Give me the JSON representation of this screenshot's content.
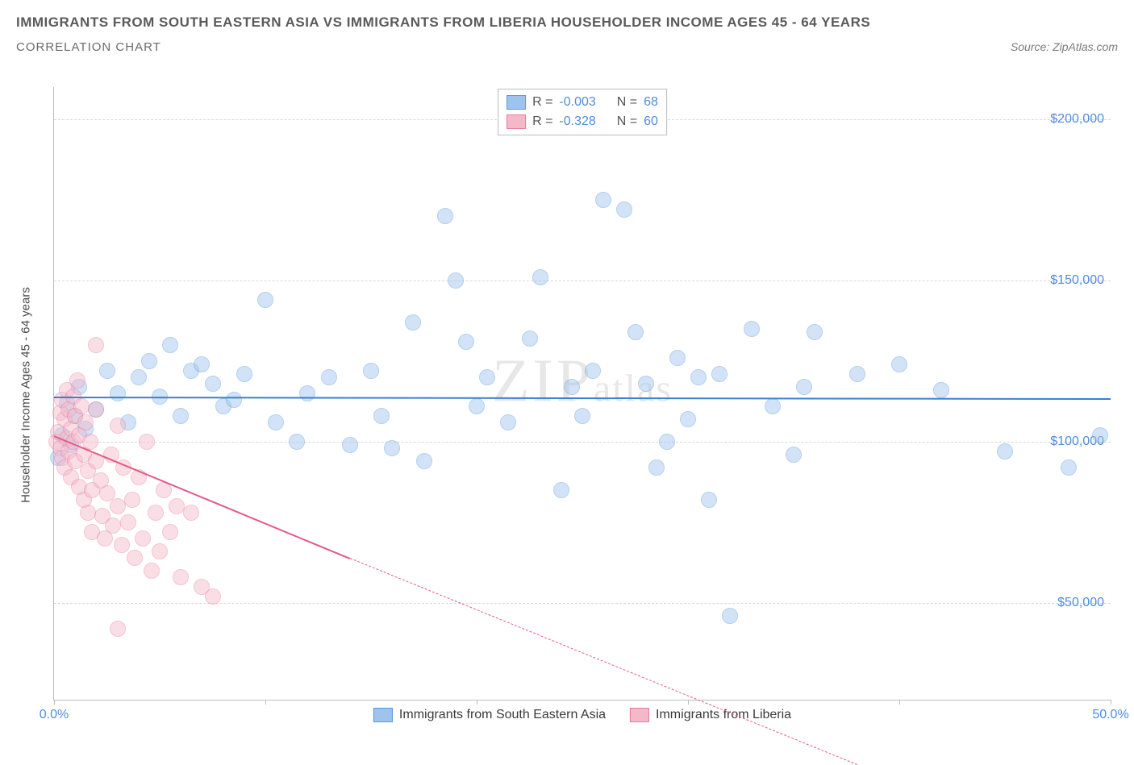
{
  "title": "IMMIGRANTS FROM SOUTH EASTERN ASIA VS IMMIGRANTS FROM LIBERIA HOUSEHOLDER INCOME AGES 45 - 64 YEARS",
  "subtitle": "CORRELATION CHART",
  "source_label": "Source:",
  "source_name": "ZipAtlas.com",
  "watermark": "ZIPatlas",
  "y_axis_title": "Householder Income Ages 45 - 64 years",
  "chart": {
    "type": "scatter",
    "background_color": "#ffffff",
    "grid_color": "#d8d8d8",
    "axis_color": "#bcbcbc",
    "xlim": [
      0,
      50
    ],
    "ylim": [
      20000,
      210000
    ],
    "y_ticks": [
      50000,
      100000,
      150000,
      200000
    ],
    "y_tick_labels": [
      "$50,000",
      "$100,000",
      "$150,000",
      "$200,000"
    ],
    "x_ticks": [
      0,
      10,
      20,
      30,
      40,
      50
    ],
    "x_tick_labels": [
      "0.0%",
      "",
      "",
      "",
      "",
      "50.0%"
    ],
    "tick_label_color": "#4f8bdc",
    "tick_label_fontsize": 16,
    "marker_radius": 9,
    "marker_opacity": 0.45,
    "trend_line_width": 2.5
  },
  "series": [
    {
      "id": "sea",
      "label": "Immigrants from South Eastern Asia",
      "fill_color": "#9dc3ee",
      "stroke_color": "#5a98db",
      "line_color": "#3c7fd0",
      "R": "-0.003",
      "N": "68",
      "trend": {
        "x1": 0,
        "y1": 114000,
        "x2": 50,
        "y2": 113500,
        "dash": false
      },
      "points": [
        [
          0.2,
          95000
        ],
        [
          0.4,
          102000
        ],
        [
          0.6,
          112000
        ],
        [
          0.8,
          99000
        ],
        [
          1.0,
          108000
        ],
        [
          1.2,
          117000
        ],
        [
          1.5,
          104000
        ],
        [
          2.0,
          110000
        ],
        [
          2.5,
          122000
        ],
        [
          3.0,
          115000
        ],
        [
          3.5,
          106000
        ],
        [
          4.0,
          120000
        ],
        [
          4.5,
          125000
        ],
        [
          5.0,
          114000
        ],
        [
          5.5,
          130000
        ],
        [
          6.0,
          108000
        ],
        [
          6.5,
          122000
        ],
        [
          7.0,
          124000
        ],
        [
          7.5,
          118000
        ],
        [
          8.0,
          111000
        ],
        [
          8.5,
          113000
        ],
        [
          9.0,
          121000
        ],
        [
          10.0,
          144000
        ],
        [
          10.5,
          106000
        ],
        [
          11.5,
          100000
        ],
        [
          12.0,
          115000
        ],
        [
          13.0,
          120000
        ],
        [
          14.0,
          99000
        ],
        [
          15.0,
          122000
        ],
        [
          15.5,
          108000
        ],
        [
          16.0,
          98000
        ],
        [
          17.0,
          137000
        ],
        [
          17.5,
          94000
        ],
        [
          18.5,
          170000
        ],
        [
          19.0,
          150000
        ],
        [
          19.5,
          131000
        ],
        [
          20.0,
          111000
        ],
        [
          20.5,
          120000
        ],
        [
          21.5,
          106000
        ],
        [
          22.5,
          132000
        ],
        [
          23.0,
          151000
        ],
        [
          24.0,
          85000
        ],
        [
          24.5,
          117000
        ],
        [
          25.0,
          108000
        ],
        [
          25.5,
          122000
        ],
        [
          26.0,
          175000
        ],
        [
          27.0,
          172000
        ],
        [
          27.5,
          134000
        ],
        [
          28.0,
          118000
        ],
        [
          28.5,
          92000
        ],
        [
          29.0,
          100000
        ],
        [
          29.5,
          126000
        ],
        [
          30.0,
          107000
        ],
        [
          30.5,
          120000
        ],
        [
          31.0,
          82000
        ],
        [
          31.5,
          121000
        ],
        [
          32.0,
          46000
        ],
        [
          33.0,
          135000
        ],
        [
          34.0,
          111000
        ],
        [
          35.0,
          96000
        ],
        [
          35.5,
          117000
        ],
        [
          36.0,
          134000
        ],
        [
          38.0,
          121000
        ],
        [
          40.0,
          124000
        ],
        [
          42.0,
          116000
        ],
        [
          45.0,
          97000
        ],
        [
          48.0,
          92000
        ],
        [
          49.5,
          102000
        ]
      ]
    },
    {
      "id": "liberia",
      "label": "Immigrants from Liberia",
      "fill_color": "#f4b8c8",
      "stroke_color": "#e77da0",
      "line_color": "#e35b88",
      "R": "-0.328",
      "N": "60",
      "trend": {
        "x1": 0,
        "y1": 102000,
        "x2": 14,
        "y2": 64000,
        "dash": false
      },
      "trend_ext": {
        "x1": 14,
        "y1": 64000,
        "x2": 38,
        "y2": 0,
        "dash": true
      },
      "points": [
        [
          0.1,
          100000
        ],
        [
          0.2,
          103000
        ],
        [
          0.3,
          98000
        ],
        [
          0.3,
          109000
        ],
        [
          0.4,
          113000
        ],
        [
          0.4,
          95000
        ],
        [
          0.5,
          107000
        ],
        [
          0.5,
          92000
        ],
        [
          0.6,
          116000
        ],
        [
          0.6,
          101000
        ],
        [
          0.7,
          110000
        ],
        [
          0.7,
          97000
        ],
        [
          0.8,
          104000
        ],
        [
          0.8,
          89000
        ],
        [
          0.9,
          114000
        ],
        [
          0.9,
          100000
        ],
        [
          1.0,
          108000
        ],
        [
          1.0,
          94000
        ],
        [
          1.1,
          119000
        ],
        [
          1.2,
          102000
        ],
        [
          1.2,
          86000
        ],
        [
          1.3,
          111000
        ],
        [
          1.4,
          96000
        ],
        [
          1.4,
          82000
        ],
        [
          1.5,
          106000
        ],
        [
          1.6,
          91000
        ],
        [
          1.6,
          78000
        ],
        [
          1.7,
          100000
        ],
        [
          1.8,
          85000
        ],
        [
          1.8,
          72000
        ],
        [
          2.0,
          130000
        ],
        [
          2.0,
          110000
        ],
        [
          2.0,
          94000
        ],
        [
          2.2,
          88000
        ],
        [
          2.3,
          77000
        ],
        [
          2.4,
          70000
        ],
        [
          2.5,
          84000
        ],
        [
          2.7,
          96000
        ],
        [
          2.8,
          74000
        ],
        [
          3.0,
          105000
        ],
        [
          3.0,
          80000
        ],
        [
          3.2,
          68000
        ],
        [
          3.3,
          92000
        ],
        [
          3.5,
          75000
        ],
        [
          3.7,
          82000
        ],
        [
          3.8,
          64000
        ],
        [
          4.0,
          89000
        ],
        [
          4.2,
          70000
        ],
        [
          4.4,
          100000
        ],
        [
          4.6,
          60000
        ],
        [
          4.8,
          78000
        ],
        [
          5.0,
          66000
        ],
        [
          5.2,
          85000
        ],
        [
          5.5,
          72000
        ],
        [
          5.8,
          80000
        ],
        [
          6.0,
          58000
        ],
        [
          6.5,
          78000
        ],
        [
          7.0,
          55000
        ],
        [
          7.5,
          52000
        ],
        [
          3.0,
          42000
        ]
      ]
    }
  ],
  "legend_stats": {
    "R_label": "R =",
    "N_label": "N ="
  }
}
